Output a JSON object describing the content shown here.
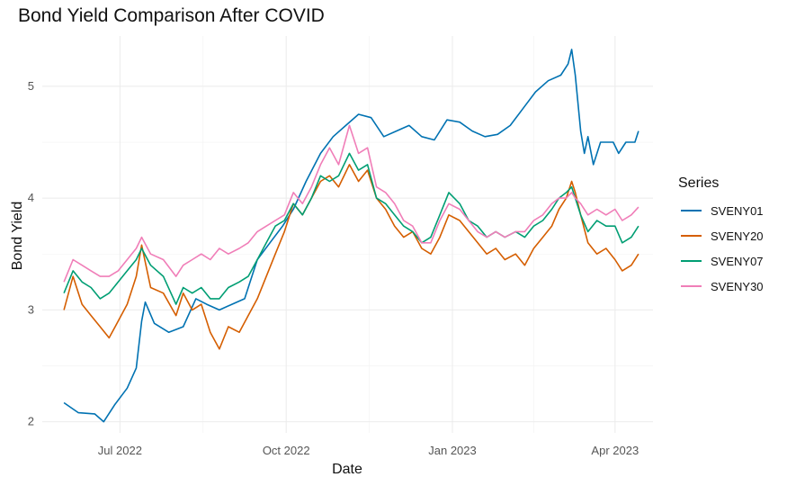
{
  "chart_data": {
    "type": "line",
    "title": "Bond Yield Comparison After COVID",
    "xlabel": "Date",
    "ylabel": "Bond Yield",
    "legend_title": "Series",
    "legend_position": "right",
    "grid": true,
    "x_range": [
      "2022-05-19",
      "2023-04-22"
    ],
    "ylim": [
      1.9,
      5.45
    ],
    "y_ticks": [
      2,
      3,
      4,
      5
    ],
    "x_ticks": [
      {
        "date": "2022-07-01",
        "label": "Jul 2022"
      },
      {
        "date": "2022-10-01",
        "label": "Oct 2022"
      },
      {
        "date": "2023-01-01",
        "label": "Jan 2023"
      },
      {
        "date": "2023-04-01",
        "label": "Apr 2023"
      }
    ],
    "series": [
      {
        "name": "SVENY01",
        "color": "#0072B2",
        "points": [
          [
            "2022-05-31",
            2.17
          ],
          [
            "2022-06-08",
            2.08
          ],
          [
            "2022-06-17",
            2.07
          ],
          [
            "2022-06-22",
            2.0
          ],
          [
            "2022-06-28",
            2.15
          ],
          [
            "2022-07-05",
            2.3
          ],
          [
            "2022-07-10",
            2.48
          ],
          [
            "2022-07-13",
            2.9
          ],
          [
            "2022-07-15",
            3.07
          ],
          [
            "2022-07-20",
            2.88
          ],
          [
            "2022-07-28",
            2.8
          ],
          [
            "2022-08-05",
            2.85
          ],
          [
            "2022-08-12",
            3.1
          ],
          [
            "2022-08-18",
            3.05
          ],
          [
            "2022-08-25",
            3.0
          ],
          [
            "2022-09-01",
            3.05
          ],
          [
            "2022-09-08",
            3.1
          ],
          [
            "2022-09-15",
            3.45
          ],
          [
            "2022-09-22",
            3.6
          ],
          [
            "2022-09-29",
            3.75
          ],
          [
            "2022-10-05",
            3.9
          ],
          [
            "2022-10-12",
            4.15
          ],
          [
            "2022-10-20",
            4.4
          ],
          [
            "2022-10-27",
            4.55
          ],
          [
            "2022-11-03",
            4.65
          ],
          [
            "2022-11-10",
            4.75
          ],
          [
            "2022-11-17",
            4.72
          ],
          [
            "2022-11-24",
            4.55
          ],
          [
            "2022-12-01",
            4.6
          ],
          [
            "2022-12-08",
            4.65
          ],
          [
            "2022-12-15",
            4.55
          ],
          [
            "2022-12-22",
            4.52
          ],
          [
            "2022-12-29",
            4.7
          ],
          [
            "2023-01-05",
            4.68
          ],
          [
            "2023-01-12",
            4.6
          ],
          [
            "2023-01-19",
            4.55
          ],
          [
            "2023-01-26",
            4.57
          ],
          [
            "2023-02-02",
            4.65
          ],
          [
            "2023-02-09",
            4.8
          ],
          [
            "2023-02-16",
            4.95
          ],
          [
            "2023-02-23",
            5.05
          ],
          [
            "2023-03-02",
            5.1
          ],
          [
            "2023-03-06",
            5.2
          ],
          [
            "2023-03-08",
            5.33
          ],
          [
            "2023-03-10",
            5.1
          ],
          [
            "2023-03-13",
            4.6
          ],
          [
            "2023-03-15",
            4.4
          ],
          [
            "2023-03-17",
            4.55
          ],
          [
            "2023-03-20",
            4.3
          ],
          [
            "2023-03-24",
            4.5
          ],
          [
            "2023-03-31",
            4.5
          ],
          [
            "2023-04-03",
            4.4
          ],
          [
            "2023-04-07",
            4.5
          ],
          [
            "2023-04-12",
            4.5
          ],
          [
            "2023-04-14",
            4.6
          ]
        ]
      },
      {
        "name": "SVENY20",
        "color": "#D55E00",
        "points": [
          [
            "2022-05-31",
            3.0
          ],
          [
            "2022-06-05",
            3.3
          ],
          [
            "2022-06-10",
            3.05
          ],
          [
            "2022-06-15",
            2.95
          ],
          [
            "2022-06-20",
            2.85
          ],
          [
            "2022-06-25",
            2.75
          ],
          [
            "2022-06-30",
            2.9
          ],
          [
            "2022-07-05",
            3.05
          ],
          [
            "2022-07-10",
            3.3
          ],
          [
            "2022-07-13",
            3.58
          ],
          [
            "2022-07-18",
            3.2
          ],
          [
            "2022-07-25",
            3.15
          ],
          [
            "2022-08-01",
            2.95
          ],
          [
            "2022-08-05",
            3.15
          ],
          [
            "2022-08-10",
            3.0
          ],
          [
            "2022-08-15",
            3.05
          ],
          [
            "2022-08-20",
            2.8
          ],
          [
            "2022-08-25",
            2.65
          ],
          [
            "2022-08-30",
            2.85
          ],
          [
            "2022-09-05",
            2.8
          ],
          [
            "2022-09-10",
            2.95
          ],
          [
            "2022-09-15",
            3.1
          ],
          [
            "2022-09-20",
            3.3
          ],
          [
            "2022-09-25",
            3.5
          ],
          [
            "2022-09-30",
            3.7
          ],
          [
            "2022-10-05",
            3.95
          ],
          [
            "2022-10-10",
            3.85
          ],
          [
            "2022-10-15",
            4.0
          ],
          [
            "2022-10-20",
            4.15
          ],
          [
            "2022-10-25",
            4.2
          ],
          [
            "2022-10-30",
            4.1
          ],
          [
            "2022-11-05",
            4.3
          ],
          [
            "2022-11-10",
            4.15
          ],
          [
            "2022-11-15",
            4.25
          ],
          [
            "2022-11-20",
            4.0
          ],
          [
            "2022-11-25",
            3.9
          ],
          [
            "2022-11-30",
            3.75
          ],
          [
            "2022-12-05",
            3.65
          ],
          [
            "2022-12-10",
            3.7
          ],
          [
            "2022-12-15",
            3.55
          ],
          [
            "2022-12-20",
            3.5
          ],
          [
            "2022-12-25",
            3.65
          ],
          [
            "2022-12-30",
            3.85
          ],
          [
            "2023-01-05",
            3.8
          ],
          [
            "2023-01-10",
            3.7
          ],
          [
            "2023-01-15",
            3.6
          ],
          [
            "2023-01-20",
            3.5
          ],
          [
            "2023-01-25",
            3.55
          ],
          [
            "2023-01-30",
            3.45
          ],
          [
            "2023-02-05",
            3.5
          ],
          [
            "2023-02-10",
            3.4
          ],
          [
            "2023-02-15",
            3.55
          ],
          [
            "2023-02-20",
            3.65
          ],
          [
            "2023-02-25",
            3.75
          ],
          [
            "2023-03-01",
            3.9
          ],
          [
            "2023-03-05",
            4.0
          ],
          [
            "2023-03-08",
            4.15
          ],
          [
            "2023-03-10",
            4.05
          ],
          [
            "2023-03-13",
            3.85
          ],
          [
            "2023-03-17",
            3.6
          ],
          [
            "2023-03-22",
            3.5
          ],
          [
            "2023-03-27",
            3.55
          ],
          [
            "2023-04-01",
            3.45
          ],
          [
            "2023-04-05",
            3.35
          ],
          [
            "2023-04-10",
            3.4
          ],
          [
            "2023-04-14",
            3.5
          ]
        ]
      },
      {
        "name": "SVENY07",
        "color": "#009E73",
        "points": [
          [
            "2022-05-31",
            3.15
          ],
          [
            "2022-06-05",
            3.35
          ],
          [
            "2022-06-10",
            3.25
          ],
          [
            "2022-06-15",
            3.2
          ],
          [
            "2022-06-20",
            3.1
          ],
          [
            "2022-06-25",
            3.15
          ],
          [
            "2022-06-30",
            3.25
          ],
          [
            "2022-07-05",
            3.35
          ],
          [
            "2022-07-10",
            3.45
          ],
          [
            "2022-07-13",
            3.55
          ],
          [
            "2022-07-18",
            3.4
          ],
          [
            "2022-07-25",
            3.3
          ],
          [
            "2022-08-01",
            3.05
          ],
          [
            "2022-08-05",
            3.2
          ],
          [
            "2022-08-10",
            3.15
          ],
          [
            "2022-08-15",
            3.2
          ],
          [
            "2022-08-20",
            3.1
          ],
          [
            "2022-08-25",
            3.1
          ],
          [
            "2022-08-30",
            3.2
          ],
          [
            "2022-09-05",
            3.25
          ],
          [
            "2022-09-10",
            3.3
          ],
          [
            "2022-09-15",
            3.45
          ],
          [
            "2022-09-20",
            3.6
          ],
          [
            "2022-09-25",
            3.75
          ],
          [
            "2022-09-30",
            3.8
          ],
          [
            "2022-10-05",
            3.95
          ],
          [
            "2022-10-10",
            3.85
          ],
          [
            "2022-10-15",
            4.0
          ],
          [
            "2022-10-20",
            4.2
          ],
          [
            "2022-10-25",
            4.15
          ],
          [
            "2022-10-30",
            4.2
          ],
          [
            "2022-11-05",
            4.4
          ],
          [
            "2022-11-10",
            4.25
          ],
          [
            "2022-11-15",
            4.3
          ],
          [
            "2022-11-20",
            4.0
          ],
          [
            "2022-11-25",
            3.95
          ],
          [
            "2022-11-30",
            3.85
          ],
          [
            "2022-12-05",
            3.75
          ],
          [
            "2022-12-10",
            3.7
          ],
          [
            "2022-12-15",
            3.6
          ],
          [
            "2022-12-20",
            3.65
          ],
          [
            "2022-12-25",
            3.85
          ],
          [
            "2022-12-30",
            4.05
          ],
          [
            "2023-01-05",
            3.95
          ],
          [
            "2023-01-10",
            3.8
          ],
          [
            "2023-01-15",
            3.75
          ],
          [
            "2023-01-20",
            3.65
          ],
          [
            "2023-01-25",
            3.7
          ],
          [
            "2023-01-30",
            3.65
          ],
          [
            "2023-02-05",
            3.7
          ],
          [
            "2023-02-10",
            3.65
          ],
          [
            "2023-02-15",
            3.75
          ],
          [
            "2023-02-20",
            3.8
          ],
          [
            "2023-02-25",
            3.9
          ],
          [
            "2023-03-01",
            4.0
          ],
          [
            "2023-03-05",
            4.05
          ],
          [
            "2023-03-08",
            4.1
          ],
          [
            "2023-03-10",
            4.0
          ],
          [
            "2023-03-13",
            3.85
          ],
          [
            "2023-03-17",
            3.7
          ],
          [
            "2023-03-22",
            3.8
          ],
          [
            "2023-03-27",
            3.75
          ],
          [
            "2023-04-01",
            3.75
          ],
          [
            "2023-04-05",
            3.6
          ],
          [
            "2023-04-10",
            3.65
          ],
          [
            "2023-04-14",
            3.75
          ]
        ]
      },
      {
        "name": "SVENY30",
        "color": "#F07EB8",
        "points": [
          [
            "2022-05-31",
            3.25
          ],
          [
            "2022-06-05",
            3.45
          ],
          [
            "2022-06-10",
            3.4
          ],
          [
            "2022-06-15",
            3.35
          ],
          [
            "2022-06-20",
            3.3
          ],
          [
            "2022-06-25",
            3.3
          ],
          [
            "2022-06-30",
            3.35
          ],
          [
            "2022-07-05",
            3.45
          ],
          [
            "2022-07-10",
            3.55
          ],
          [
            "2022-07-13",
            3.65
          ],
          [
            "2022-07-18",
            3.5
          ],
          [
            "2022-07-25",
            3.45
          ],
          [
            "2022-08-01",
            3.3
          ],
          [
            "2022-08-05",
            3.4
          ],
          [
            "2022-08-10",
            3.45
          ],
          [
            "2022-08-15",
            3.5
          ],
          [
            "2022-08-20",
            3.45
          ],
          [
            "2022-08-25",
            3.55
          ],
          [
            "2022-08-30",
            3.5
          ],
          [
            "2022-09-05",
            3.55
          ],
          [
            "2022-09-10",
            3.6
          ],
          [
            "2022-09-15",
            3.7
          ],
          [
            "2022-09-20",
            3.75
          ],
          [
            "2022-09-25",
            3.8
          ],
          [
            "2022-09-30",
            3.85
          ],
          [
            "2022-10-05",
            4.05
          ],
          [
            "2022-10-10",
            3.95
          ],
          [
            "2022-10-15",
            4.1
          ],
          [
            "2022-10-20",
            4.3
          ],
          [
            "2022-10-25",
            4.45
          ],
          [
            "2022-10-30",
            4.3
          ],
          [
            "2022-11-05",
            4.65
          ],
          [
            "2022-11-10",
            4.4
          ],
          [
            "2022-11-15",
            4.45
          ],
          [
            "2022-11-20",
            4.1
          ],
          [
            "2022-11-25",
            4.05
          ],
          [
            "2022-11-30",
            3.95
          ],
          [
            "2022-12-05",
            3.8
          ],
          [
            "2022-12-10",
            3.75
          ],
          [
            "2022-12-15",
            3.6
          ],
          [
            "2022-12-20",
            3.6
          ],
          [
            "2022-12-25",
            3.8
          ],
          [
            "2022-12-30",
            3.95
          ],
          [
            "2023-01-05",
            3.9
          ],
          [
            "2023-01-10",
            3.8
          ],
          [
            "2023-01-15",
            3.7
          ],
          [
            "2023-01-20",
            3.65
          ],
          [
            "2023-01-25",
            3.7
          ],
          [
            "2023-01-30",
            3.65
          ],
          [
            "2023-02-05",
            3.7
          ],
          [
            "2023-02-10",
            3.7
          ],
          [
            "2023-02-15",
            3.8
          ],
          [
            "2023-02-20",
            3.85
          ],
          [
            "2023-02-25",
            3.95
          ],
          [
            "2023-03-01",
            4.0
          ],
          [
            "2023-03-05",
            4.0
          ],
          [
            "2023-03-08",
            4.05
          ],
          [
            "2023-03-10",
            4.0
          ],
          [
            "2023-03-13",
            3.95
          ],
          [
            "2023-03-17",
            3.85
          ],
          [
            "2023-03-22",
            3.9
          ],
          [
            "2023-03-27",
            3.85
          ],
          [
            "2023-04-01",
            3.9
          ],
          [
            "2023-04-05",
            3.8
          ],
          [
            "2023-04-10",
            3.85
          ],
          [
            "2023-04-14",
            3.92
          ]
        ]
      }
    ]
  }
}
